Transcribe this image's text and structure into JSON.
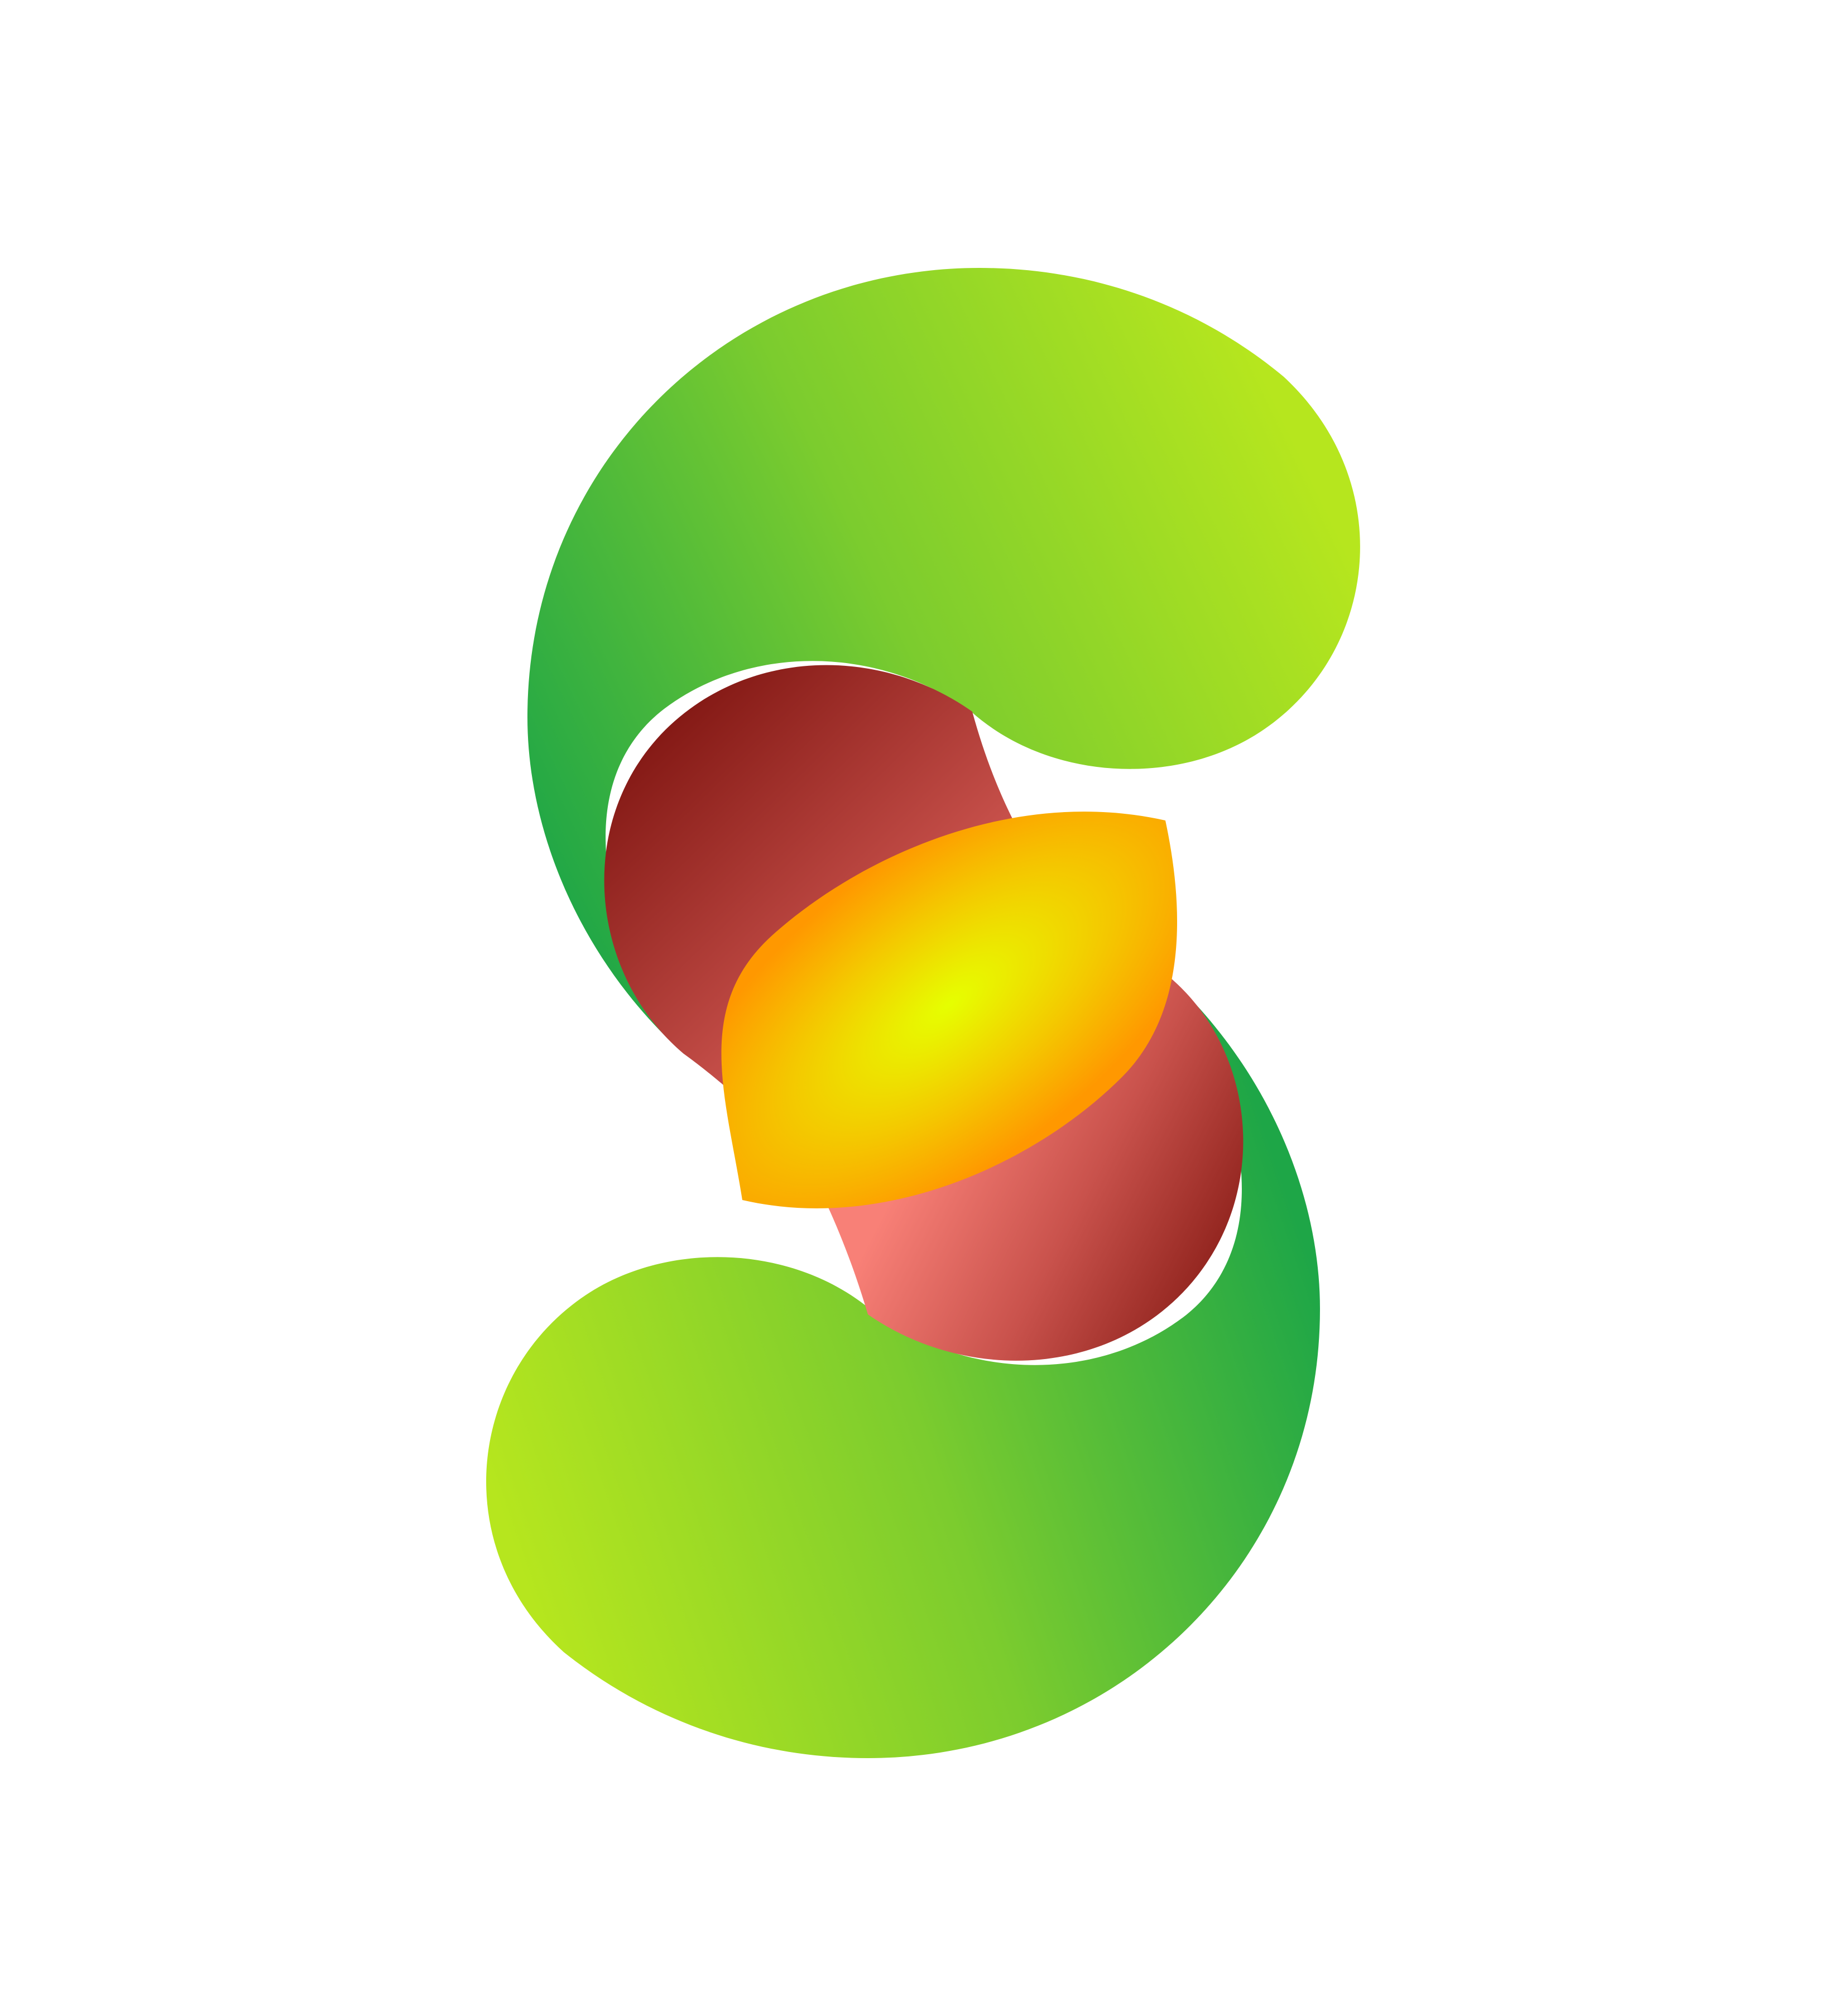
{
  "logo": {
    "description_icon": "s-shaped-fruit-logo-icon",
    "colors": {
      "background": "#ffffff",
      "green_dark": "#1ea647",
      "green_mid": "#7ccc2e",
      "green_light": "#b6e61e",
      "red_dark": "#7e1410",
      "red_mid": "#c9524c",
      "red_light": "#f88077",
      "yellow_center": "#e6ff00",
      "orange_edge": "#ff9800"
    }
  }
}
